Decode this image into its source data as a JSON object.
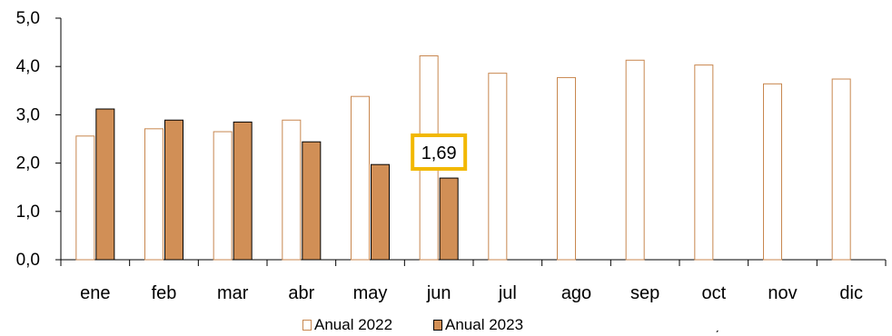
{
  "chart_data": {
    "type": "bar",
    "categories": [
      "ene",
      "feb",
      "mar",
      "abr",
      "may",
      "jun",
      "jul",
      "ago",
      "sep",
      "oct",
      "nov",
      "dic"
    ],
    "series": [
      {
        "name": "Anual 2022",
        "values": [
          2.56,
          2.71,
          2.65,
          2.89,
          3.38,
          4.22,
          3.86,
          3.77,
          4.13,
          4.03,
          3.64,
          3.74
        ],
        "fill": "#ffffff",
        "stroke": "#c8874f"
      },
      {
        "name": "Anual 2023",
        "values": [
          3.12,
          2.89,
          2.85,
          2.44,
          1.97,
          1.69,
          null,
          null,
          null,
          null,
          null,
          null
        ],
        "fill": "#d18f56",
        "stroke": "#000000"
      }
    ],
    "y_tick_labels": [
      "0,0",
      "1,0",
      "2,0",
      "3,0",
      "4,0",
      "5,0"
    ],
    "ylim": [
      0,
      5
    ],
    "grid": false,
    "legend_position": "bottom-center",
    "annotation": {
      "text": "1,69",
      "category": "jun",
      "border_color": "#f2b800"
    },
    "note": "ˏ"
  }
}
